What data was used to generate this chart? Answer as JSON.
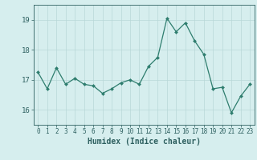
{
  "x": [
    0,
    1,
    2,
    3,
    4,
    5,
    6,
    7,
    8,
    9,
    10,
    11,
    12,
    13,
    14,
    15,
    16,
    17,
    18,
    19,
    20,
    21,
    22,
    23
  ],
  "y": [
    17.25,
    16.7,
    17.4,
    16.85,
    17.05,
    16.85,
    16.8,
    16.55,
    16.7,
    16.9,
    17.0,
    16.85,
    17.45,
    17.75,
    19.05,
    18.6,
    18.9,
    18.3,
    17.85,
    16.7,
    16.75,
    15.9,
    16.45,
    16.85
  ],
  "line_color": "#2e7d6e",
  "marker": "D",
  "marker_size": 2.0,
  "bg_color": "#d6eeee",
  "grid_color": "#b8d8d8",
  "xlabel": "Humidex (Indice chaleur)",
  "ylim": [
    15.5,
    19.5
  ],
  "xlim": [
    -0.5,
    23.5
  ],
  "yticks": [
    16,
    17,
    18,
    19
  ],
  "xticks": [
    0,
    1,
    2,
    3,
    4,
    5,
    6,
    7,
    8,
    9,
    10,
    11,
    12,
    13,
    14,
    15,
    16,
    17,
    18,
    19,
    20,
    21,
    22,
    23
  ],
  "tick_color": "#2e6060",
  "label_color": "#2e6060",
  "font_size_ticks": 5.5,
  "font_size_label": 7.0,
  "linewidth": 0.9
}
